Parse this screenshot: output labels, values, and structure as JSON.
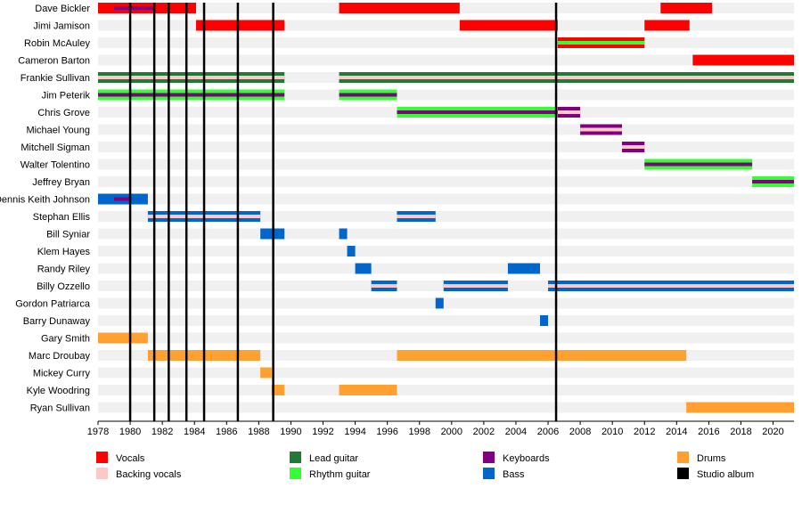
{
  "chart_data": {
    "type": "timeline",
    "title": "",
    "xlabel": "",
    "ylabel": "",
    "x_range": [
      1978,
      2021.3
    ],
    "x_ticks": [
      1978,
      1980,
      1982,
      1984,
      1986,
      1988,
      1990,
      1992,
      1994,
      1996,
      1998,
      2000,
      2002,
      2004,
      2006,
      2008,
      2010,
      2012,
      2014,
      2016,
      2018,
      2020
    ],
    "studio_albums": [
      1980.0,
      1981.5,
      1982.4,
      1983.5,
      1984.6,
      1986.7,
      1988.9,
      2006.5
    ],
    "colors": {
      "vocals": "#ff0000",
      "backing_vocals": "#ffc8c8",
      "lead_guitar": "#1f7a35",
      "rhythm_guitar": "#33ff33",
      "keyboards": "#800080",
      "bass": "#0066cc",
      "drums": "#ffa030",
      "studio_album": "#000000",
      "row_stripe": "#f0f0f0"
    },
    "members": [
      {
        "name": "Dave Bickler",
        "roles": [
          {
            "type": "vocals",
            "start": 1978,
            "end": 1984.1,
            "secondary": "keyboards",
            "secondary_start": 1979.0,
            "secondary_end": 1981.5
          },
          {
            "type": "vocals",
            "start": 1993.0,
            "end": 2000.5
          },
          {
            "type": "vocals",
            "start": 2013.0,
            "end": 2016.2
          }
        ]
      },
      {
        "name": "Jimi Jamison",
        "roles": [
          {
            "type": "vocals",
            "start": 1984.1,
            "end": 1989.6
          },
          {
            "type": "vocals",
            "start": 2000.5,
            "end": 2006.6
          },
          {
            "type": "vocals",
            "start": 2012.0,
            "end": 2014.8
          }
        ]
      },
      {
        "name": "Robin McAuley",
        "roles": [
          {
            "type": "vocals",
            "start": 2006.6,
            "end": 2012.0,
            "secondary": "rhythm_guitar"
          }
        ]
      },
      {
        "name": "Cameron Barton",
        "roles": [
          {
            "type": "vocals",
            "start": 2015.0,
            "end": 2021.3
          }
        ]
      },
      {
        "name": "Frankie Sullivan",
        "roles": [
          {
            "type": "lead_guitar",
            "start": 1978,
            "end": 1989.6,
            "secondary": "backing_vocals"
          },
          {
            "type": "lead_guitar",
            "start": 1993.0,
            "end": 2021.3,
            "secondary": "backing_vocals"
          }
        ]
      },
      {
        "name": "Jim Peterik",
        "roles": [
          {
            "type": "rhythm_guitar",
            "start": 1978,
            "end": 1989.6,
            "secondary": "keyboards"
          },
          {
            "type": "rhythm_guitar",
            "start": 1993.0,
            "end": 1996.6,
            "secondary": "keyboards"
          }
        ]
      },
      {
        "name": "Chris Grove",
        "roles": [
          {
            "type": "rhythm_guitar",
            "start": 1996.6,
            "end": 2006.6,
            "secondary": "keyboards"
          },
          {
            "type": "keyboards",
            "start": 2006.6,
            "end": 2008.0,
            "secondary": "backing_vocals"
          }
        ]
      },
      {
        "name": "Michael Young",
        "roles": [
          {
            "type": "keyboards",
            "start": 2008.0,
            "end": 2010.6,
            "secondary": "backing_vocals"
          }
        ]
      },
      {
        "name": "Mitchell Sigman",
        "roles": [
          {
            "type": "keyboards",
            "start": 2010.6,
            "end": 2012.0,
            "secondary": "backing_vocals"
          }
        ]
      },
      {
        "name": "Walter Tolentino",
        "roles": [
          {
            "type": "rhythm_guitar",
            "start": 2012.0,
            "end": 2018.7,
            "secondary": "keyboards"
          }
        ]
      },
      {
        "name": "Jeffrey Bryan",
        "roles": [
          {
            "type": "rhythm_guitar",
            "start": 2018.7,
            "end": 2021.3,
            "secondary": "keyboards"
          }
        ]
      },
      {
        "name": "Dennis Keith Johnson",
        "roles": [
          {
            "type": "bass",
            "start": 1978,
            "end": 1981.1,
            "secondary": "keyboards",
            "secondary_start": 1979.0,
            "secondary_end": 1980.0
          }
        ]
      },
      {
        "name": "Stephan Ellis",
        "roles": [
          {
            "type": "bass",
            "start": 1981.1,
            "end": 1988.1,
            "secondary": "backing_vocals"
          },
          {
            "type": "bass",
            "start": 1996.6,
            "end": 1999.0,
            "secondary": "backing_vocals"
          }
        ]
      },
      {
        "name": "Bill Syniar",
        "roles": [
          {
            "type": "bass",
            "start": 1988.1,
            "end": 1989.6
          },
          {
            "type": "bass",
            "start": 1993.0,
            "end": 1993.5
          }
        ]
      },
      {
        "name": "Klem Hayes",
        "roles": [
          {
            "type": "bass",
            "start": 1993.5,
            "end": 1994.0
          }
        ]
      },
      {
        "name": "Randy Riley",
        "roles": [
          {
            "type": "bass",
            "start": 1994.0,
            "end": 1995.0
          },
          {
            "type": "bass",
            "start": 2003.5,
            "end": 2005.5
          }
        ]
      },
      {
        "name": "Billy Ozzello",
        "roles": [
          {
            "type": "bass",
            "start": 1995.0,
            "end": 1996.6,
            "secondary": "backing_vocals"
          },
          {
            "type": "bass",
            "start": 1999.5,
            "end": 2003.5,
            "secondary": "backing_vocals"
          },
          {
            "type": "bass",
            "start": 2006.0,
            "end": 2021.3,
            "secondary": "backing_vocals"
          }
        ]
      },
      {
        "name": "Gordon Patriarca",
        "roles": [
          {
            "type": "bass",
            "start": 1999.0,
            "end": 1999.5
          }
        ]
      },
      {
        "name": "Barry Dunaway",
        "roles": [
          {
            "type": "bass",
            "start": 2005.5,
            "end": 2006.0
          }
        ]
      },
      {
        "name": "Gary Smith",
        "roles": [
          {
            "type": "drums",
            "start": 1978,
            "end": 1981.1
          }
        ]
      },
      {
        "name": "Marc Droubay",
        "roles": [
          {
            "type": "drums",
            "start": 1981.1,
            "end": 1988.1
          },
          {
            "type": "drums",
            "start": 1996.6,
            "end": 2014.6
          }
        ]
      },
      {
        "name": "Mickey Curry",
        "roles": [
          {
            "type": "drums",
            "start": 1988.1,
            "end": 1988.8
          }
        ]
      },
      {
        "name": "Kyle Woodring",
        "roles": [
          {
            "type": "drums",
            "start": 1988.8,
            "end": 1989.6
          },
          {
            "type": "drums",
            "start": 1993.0,
            "end": 1996.6
          }
        ]
      },
      {
        "name": "Ryan Sullivan",
        "roles": [
          {
            "type": "drums",
            "start": 2014.6,
            "end": 2021.3
          }
        ]
      }
    ],
    "legend": [
      {
        "key": "vocals",
        "label": "Vocals"
      },
      {
        "key": "backing_vocals",
        "label": "Backing vocals"
      },
      {
        "key": "lead_guitar",
        "label": "Lead guitar"
      },
      {
        "key": "rhythm_guitar",
        "label": "Rhythm guitar"
      },
      {
        "key": "keyboards",
        "label": "Keyboards"
      },
      {
        "key": "bass",
        "label": "Bass"
      },
      {
        "key": "drums",
        "label": "Drums"
      },
      {
        "key": "studio_album",
        "label": "Studio album"
      }
    ]
  }
}
